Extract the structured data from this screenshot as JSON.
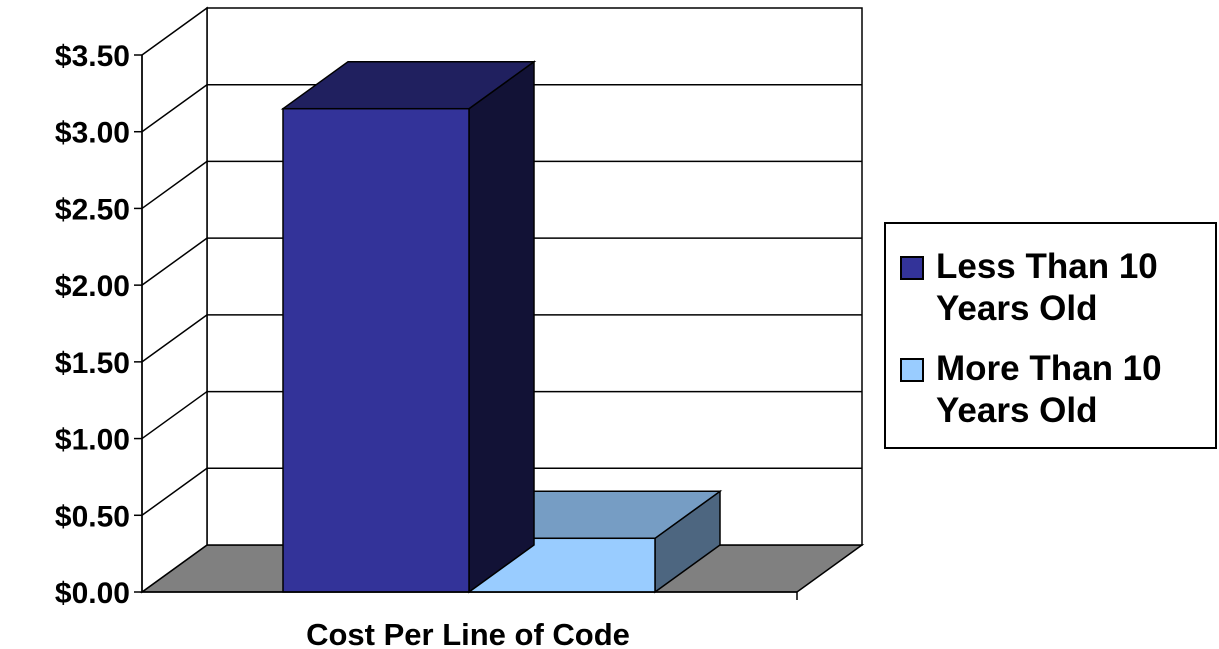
{
  "chart_data": {
    "type": "bar",
    "title": "",
    "xlabel": "",
    "ylabel": "",
    "categories": [
      "Cost Per Line of Code"
    ],
    "series": [
      {
        "name": "Less Than 10 Years Old",
        "values": [
          3.15
        ],
        "color": "#333399"
      },
      {
        "name": "More Than 10 Years Old",
        "values": [
          0.35
        ],
        "color": "#99ccff"
      }
    ],
    "ylim": [
      0,
      3.5
    ],
    "yticks": [
      "$0.00",
      "$0.50",
      "$1.00",
      "$1.50",
      "$2.00",
      "$2.50",
      "$3.00",
      "$3.50"
    ],
    "grid": true,
    "legend_position": "right",
    "style": "3d-column"
  }
}
